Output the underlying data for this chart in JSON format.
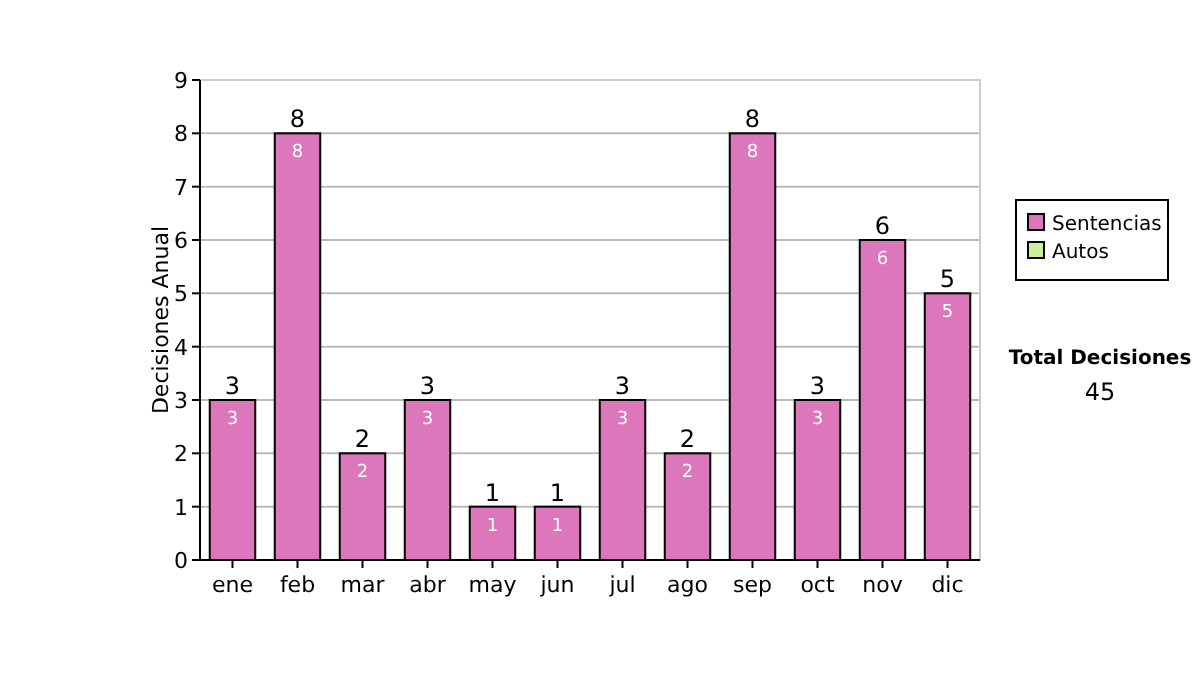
{
  "chart_data": {
    "type": "bar",
    "ylabel": "Decisiones Anual",
    "categories": [
      "ene",
      "feb",
      "mar",
      "abr",
      "may",
      "jun",
      "jul",
      "ago",
      "sep",
      "oct",
      "nov",
      "dic"
    ],
    "series": [
      {
        "name": "Sentencias",
        "color": "#dd77bb",
        "values": [
          3,
          8,
          2,
          3,
          1,
          1,
          3,
          2,
          8,
          3,
          6,
          5
        ],
        "value_labels": [
          "3",
          "8",
          "2",
          "3",
          "1",
          "1",
          "3",
          "2",
          "8",
          "3",
          "6",
          "5"
        ]
      },
      {
        "name": "Autos",
        "color": "#ccee99",
        "values": [
          0,
          0,
          0,
          0,
          0,
          0,
          0,
          0,
          0,
          0,
          0,
          0
        ],
        "value_labels": [
          null,
          null,
          null,
          null,
          null,
          null,
          null,
          null,
          null,
          null,
          null,
          null
        ]
      }
    ],
    "totals": [
      "3",
      "8",
      "2",
      "3",
      "1",
      "1",
      "3",
      "2",
      "8",
      "3",
      "6",
      "5"
    ],
    "ylim": [
      0,
      9
    ],
    "yticks": [
      0,
      1,
      2,
      3,
      4,
      5,
      6,
      7,
      8,
      9
    ],
    "grid": "y",
    "legend": "right",
    "annotations": [
      "Total Decisiones",
      "45"
    ]
  }
}
